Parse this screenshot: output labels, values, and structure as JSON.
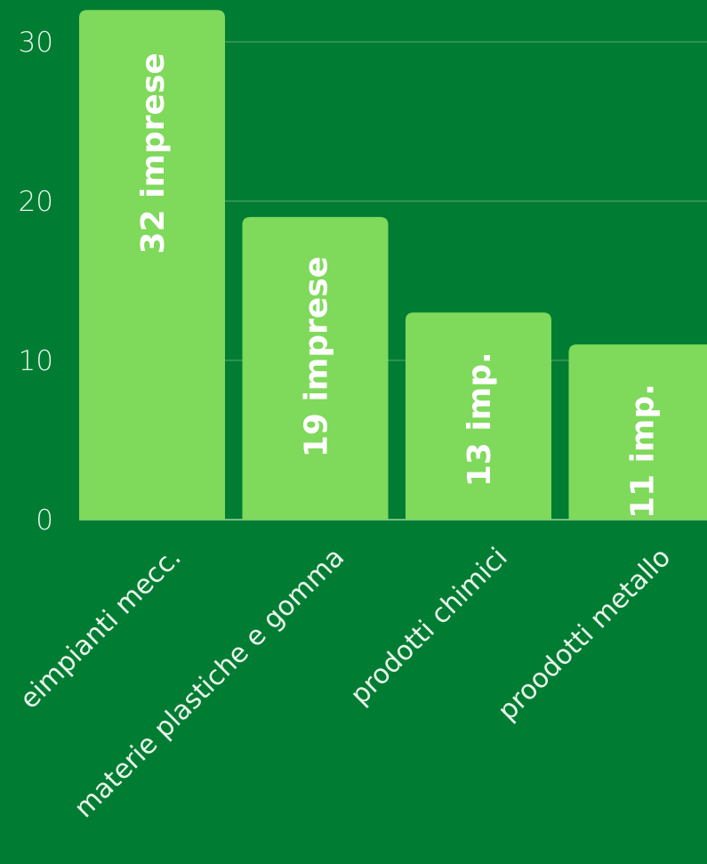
{
  "chart_data": {
    "type": "bar",
    "categories": [
      "eimpianti mecc.",
      "materie plastiche e gomma",
      "prodotti chimici",
      "proodotti metallo"
    ],
    "values": [
      32,
      19,
      13,
      11
    ],
    "data_labels": [
      "32 imprese",
      "19 imprese",
      "13 imp.",
      "11 imp."
    ],
    "ylim": [
      0,
      32
    ],
    "yticks": [
      0,
      10,
      20,
      30
    ],
    "grid": true,
    "colors": {
      "background": "#017d33",
      "bar": "#7fd95b",
      "gridline": "#3d9a5f",
      "text": "#e8f5ea",
      "label": "#ffffff"
    }
  }
}
